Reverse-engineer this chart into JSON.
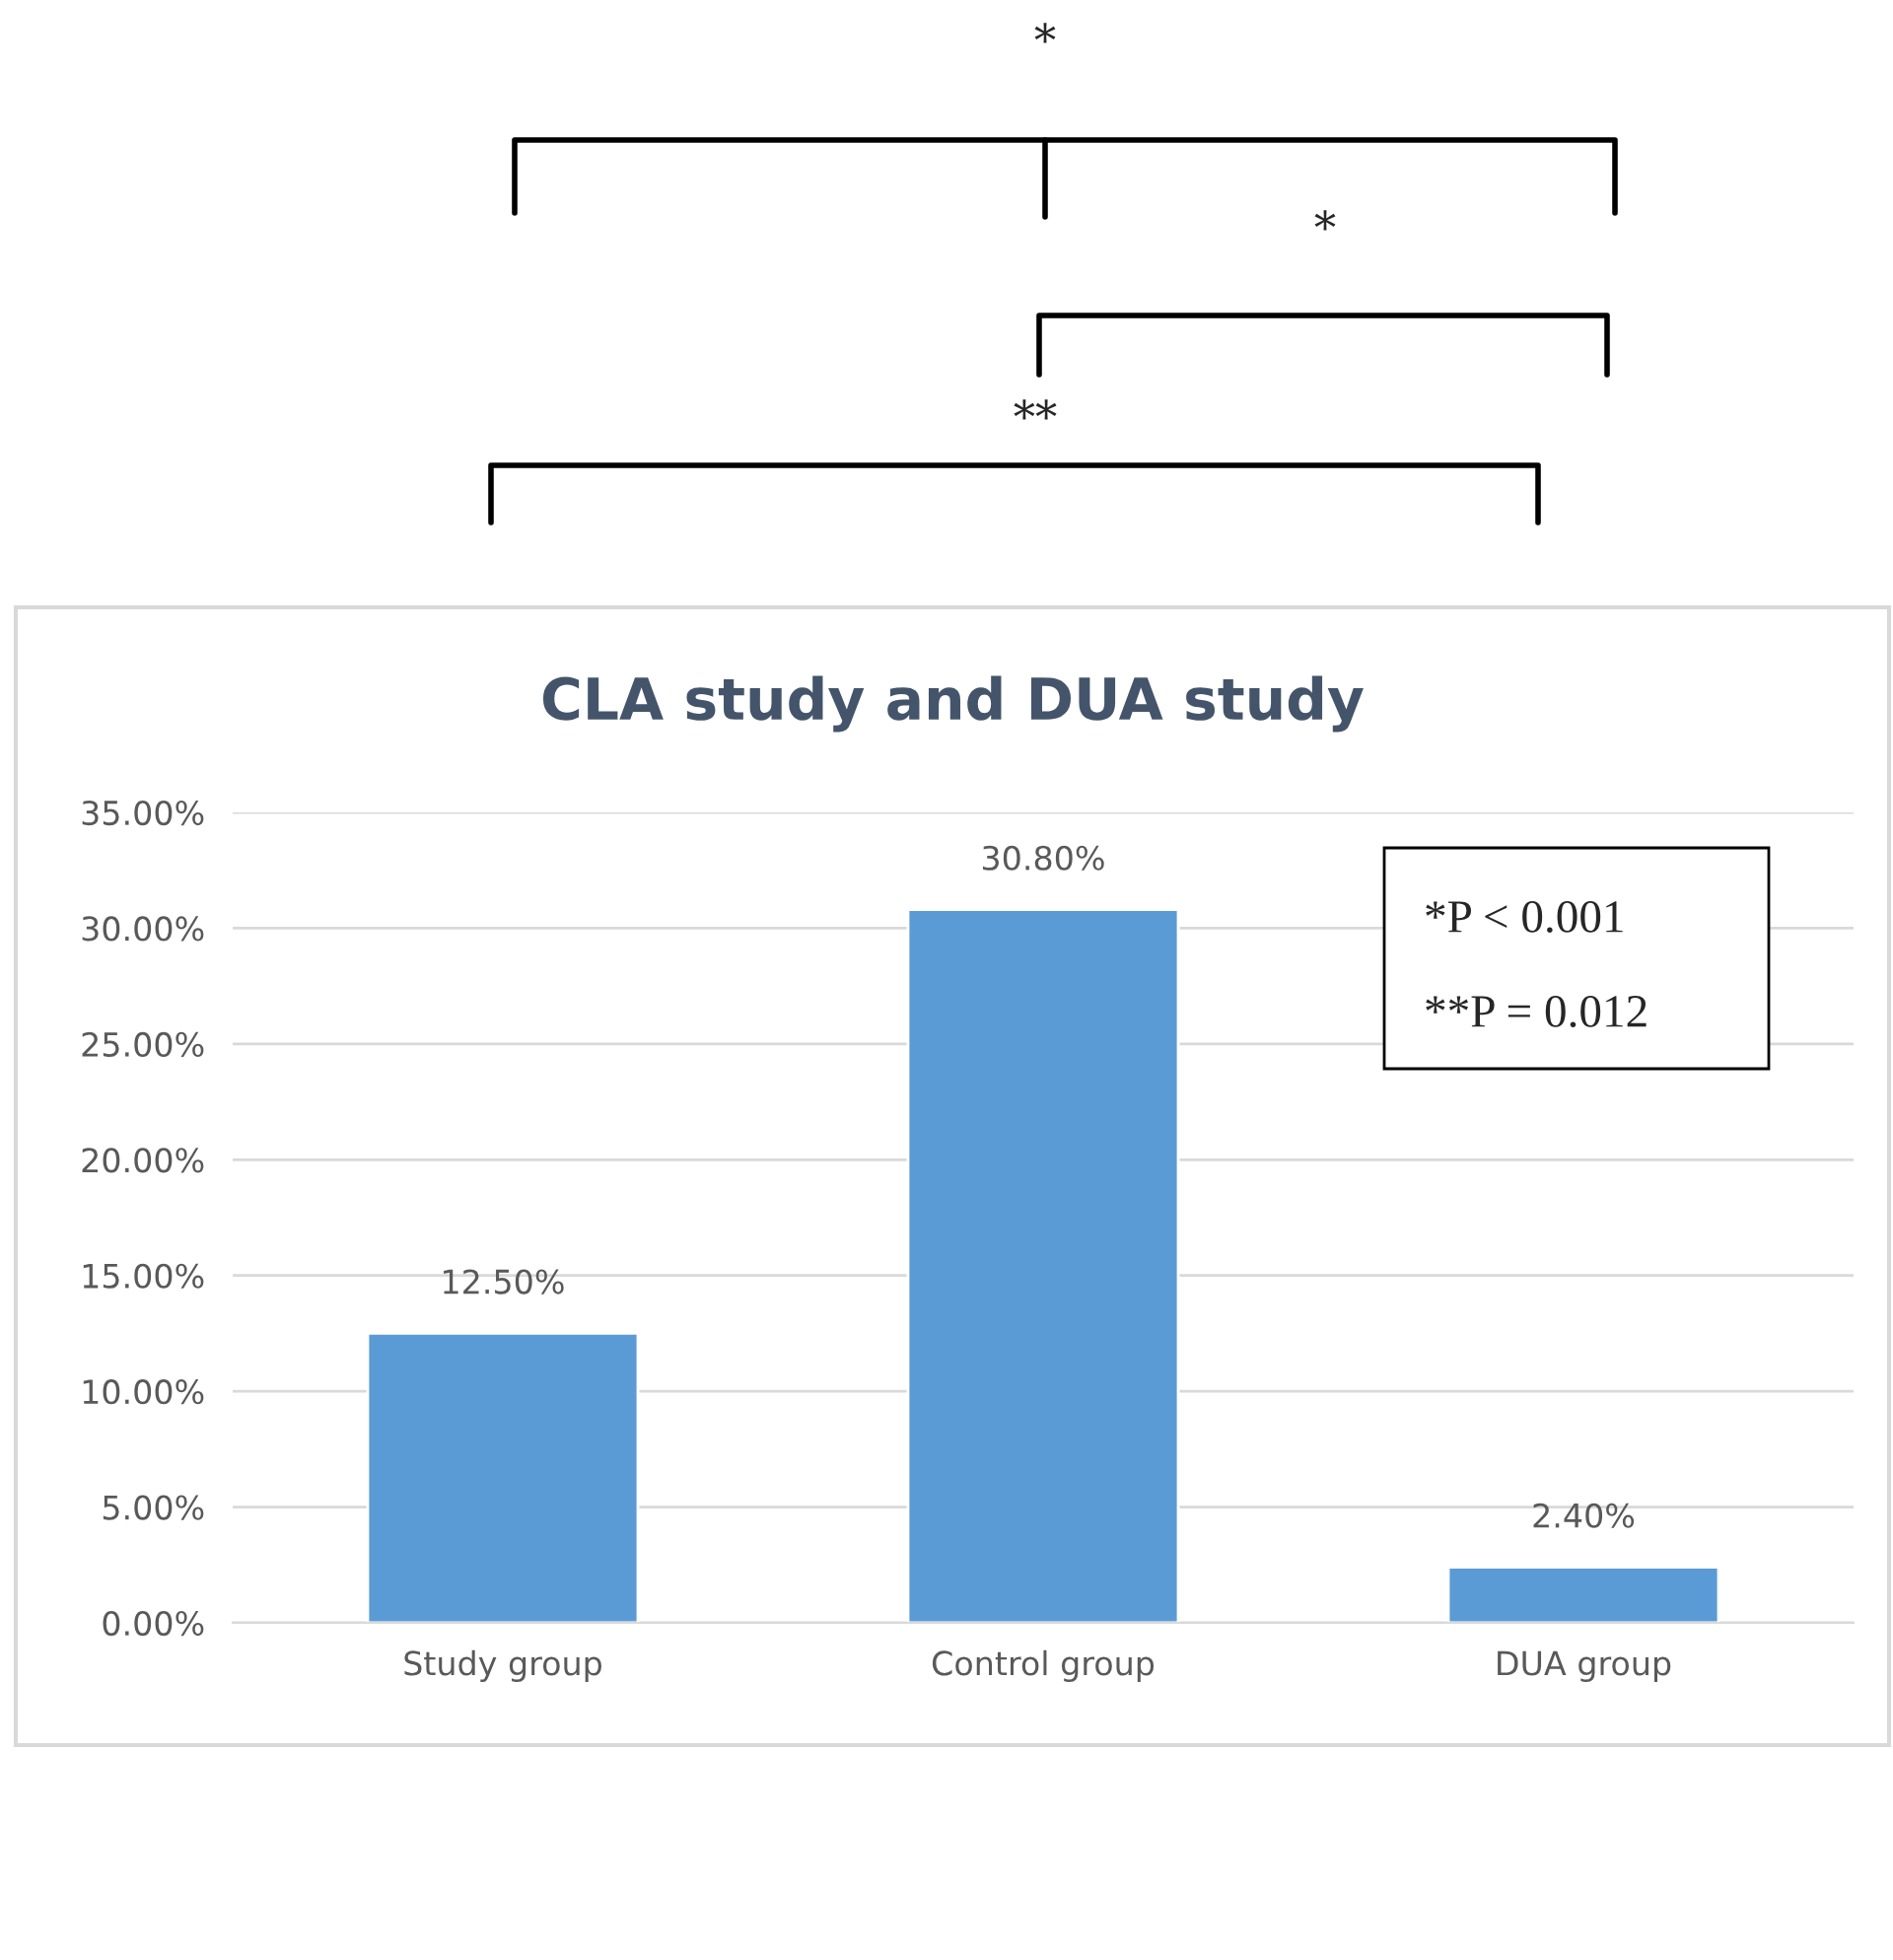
{
  "chart_data": {
    "type": "bar",
    "title": "CLA study and DUA study",
    "categories": [
      "Study group",
      "Control group",
      "DUA group"
    ],
    "values": [
      12.5,
      30.8,
      2.4
    ],
    "value_labels": [
      "12.50%",
      "30.80%",
      "2.40%"
    ],
    "color": "#5b9bd5",
    "ylim": [
      0,
      35
    ],
    "yticks": [
      {
        "value": 0,
        "label": "0.00%"
      },
      {
        "value": 5,
        "label": "5.00%"
      },
      {
        "value": 10,
        "label": "10.00%"
      },
      {
        "value": 15,
        "label": "15.00%"
      },
      {
        "value": 20,
        "label": "20.00%"
      },
      {
        "value": 25,
        "label": "25.00%"
      },
      {
        "value": 30,
        "label": "30.00%"
      },
      {
        "value": 35,
        "label": "35.00%"
      }
    ],
    "grid": "y",
    "annotations": [
      "*",
      "*",
      "**",
      "*P < 0.001",
      "**P = 0.012"
    ]
  }
}
